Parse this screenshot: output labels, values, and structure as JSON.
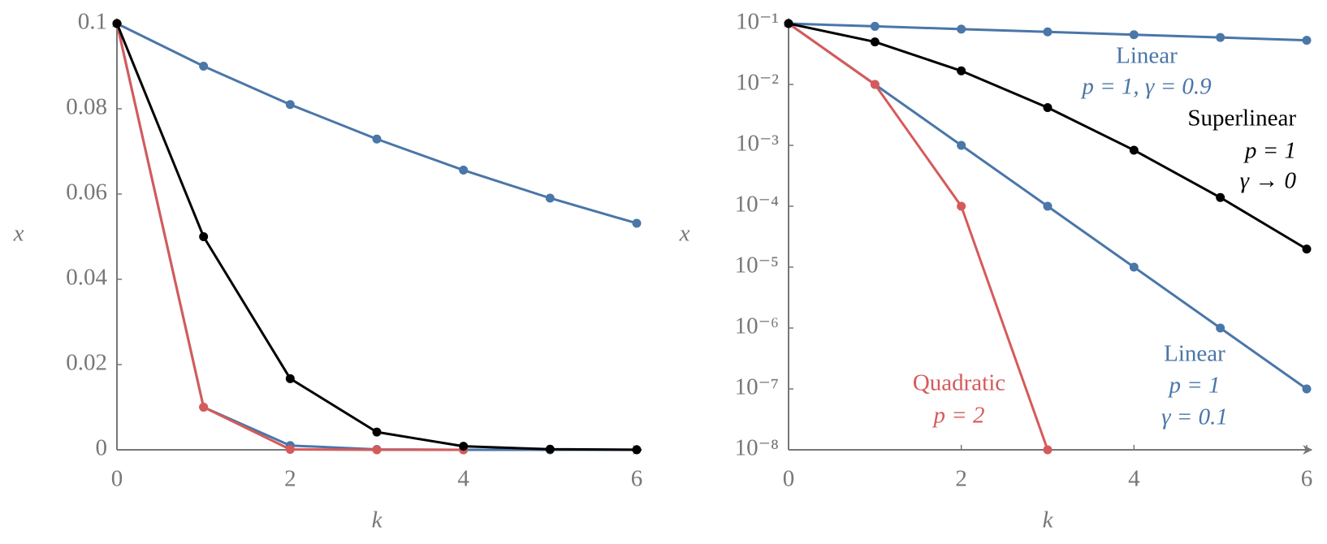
{
  "chart_data": [
    {
      "type": "line",
      "xlabel": "k",
      "ylabel": "x",
      "yscale": "linear",
      "x": [
        0,
        1,
        2,
        3,
        4,
        5,
        6
      ],
      "xlim": [
        0,
        6
      ],
      "ylim": [
        0,
        0.1
      ],
      "xticks": [
        0,
        2,
        4,
        6
      ],
      "yticks": [
        0,
        0.02,
        0.04,
        0.06,
        0.08,
        0.1
      ],
      "series": [
        {
          "color": "#4a76a8",
          "values": [
            0.1,
            0.09,
            0.081,
            0.0729,
            0.06561,
            0.059049,
            0.0531441
          ]
        },
        {
          "color": "#4a76a8",
          "values": [
            0.1,
            0.01,
            0.001,
            0.0001,
            1e-05,
            1e-06,
            1e-07
          ]
        },
        {
          "color": "#d65a5a",
          "values": [
            0.1,
            0.01,
            0.0001,
            1e-08,
            1e-16,
            null,
            null
          ]
        },
        {
          "color": "#000000",
          "values": [
            0.1,
            0.05,
            0.0167,
            0.00417,
            0.000833,
            0.000139,
            1.98e-05
          ]
        }
      ]
    },
    {
      "type": "line",
      "xlabel": "k",
      "ylabel": "x",
      "yscale": "log",
      "x": [
        0,
        1,
        2,
        3,
        4,
        5,
        6
      ],
      "xlim": [
        0,
        6
      ],
      "ylim": [
        1e-08,
        0.1
      ],
      "xticks": [
        0,
        2,
        4,
        6
      ],
      "yticks": [
        {
          "value": 1e-08,
          "label": "10⁻⁸"
        },
        {
          "value": 1e-07,
          "label": "10⁻⁷"
        },
        {
          "value": 1e-06,
          "label": "10⁻⁶"
        },
        {
          "value": 1e-05,
          "label": "10⁻⁵"
        },
        {
          "value": 0.0001,
          "label": "10⁻⁴"
        },
        {
          "value": 0.001,
          "label": "10⁻³"
        },
        {
          "value": 0.01,
          "label": "10⁻²"
        },
        {
          "value": 0.1,
          "label": "10⁻¹"
        }
      ],
      "series": [
        {
          "color": "#4a76a8",
          "values": [
            0.1,
            0.09,
            0.081,
            0.0729,
            0.06561,
            0.059049,
            0.0531441
          ]
        },
        {
          "color": "#4a76a8",
          "values": [
            0.1,
            0.01,
            0.001,
            0.0001,
            1e-05,
            1e-06,
            1e-07
          ]
        },
        {
          "color": "#d65a5a",
          "values": [
            0.1,
            0.01,
            0.0001,
            1e-08,
            null,
            null,
            null
          ]
        },
        {
          "color": "#000000",
          "values": [
            0.1,
            0.05,
            0.0167,
            0.00417,
            0.000833,
            0.000139,
            1.98e-05
          ]
        }
      ],
      "annotations": [
        {
          "text": "Linear",
          "color": "#4a76a8"
        },
        {
          "text": "p = 1, γ = 0.9",
          "color": "#4a76a8"
        },
        {
          "text": "Superlinear",
          "color": "#000000"
        },
        {
          "text": "p = 1",
          "color": "#000000"
        },
        {
          "text": "γ → 0",
          "color": "#000000"
        },
        {
          "text": "Linear",
          "color": "#4a76a8"
        },
        {
          "text": "p = 1",
          "color": "#4a76a8"
        },
        {
          "text": "γ = 0.1",
          "color": "#4a76a8"
        },
        {
          "text": "Quadratic",
          "color": "#d65a5a"
        },
        {
          "text": "p = 2",
          "color": "#d65a5a"
        }
      ]
    }
  ]
}
